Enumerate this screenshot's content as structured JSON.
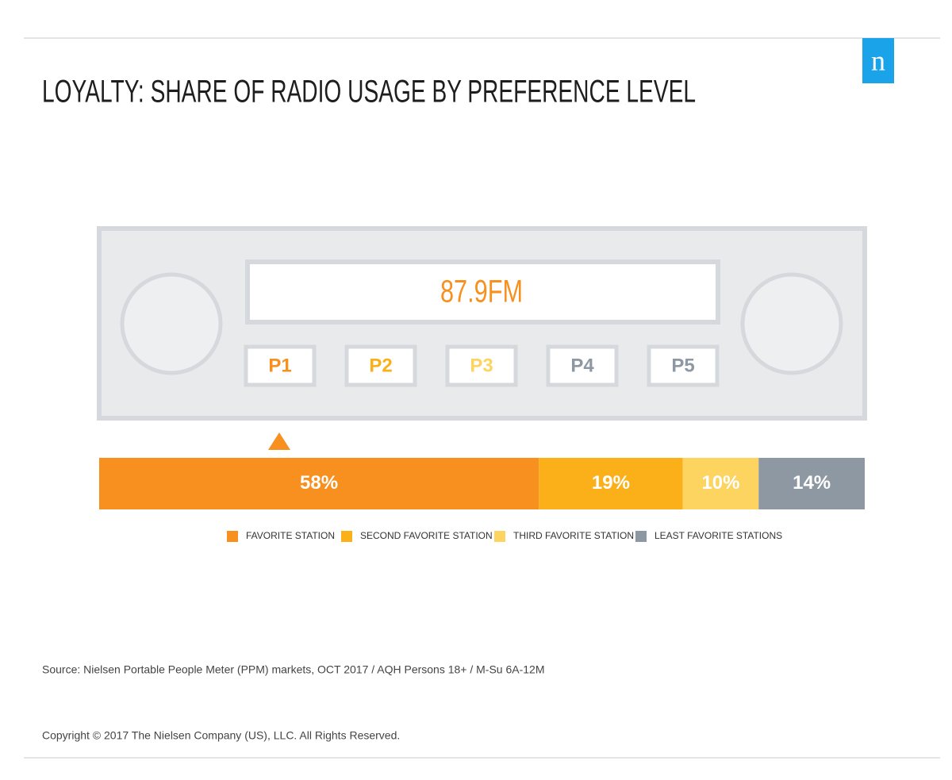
{
  "chart_data": {
    "type": "stacked-bar",
    "title": "LOYALTY: SHARE OF RADIO USAGE BY PREFERENCE LEVEL",
    "logo": "n",
    "display": "87.9FM",
    "presets": [
      "P1",
      "P2",
      "P3",
      "P4",
      "P5"
    ],
    "series": [
      {
        "name": "FAVORITE STATION",
        "color": "#f7901e",
        "values": [
          58
        ],
        "value_labels": [
          "58%"
        ]
      },
      {
        "name": "SECOND FAVORITE STATION",
        "color": "#fbb01a",
        "values": [
          19
        ],
        "value_labels": [
          "19%"
        ]
      },
      {
        "name": "THIRD FAVORITE STATION",
        "color": "#fdd460",
        "values": [
          10
        ],
        "value_labels": [
          "10%"
        ]
      },
      {
        "name": "LEAST FAVORITE STATIONS",
        "color": "#8d98a3",
        "values": [
          14
        ],
        "value_labels": [
          "14%"
        ]
      }
    ],
    "source": "Source: Nielsen Portable People Meter (PPM) markets, OCT 2017 / AQH Persons 18+ / M-Su 6A-12M",
    "copyright": "Copyright © 2017 The Nielsen Company (US), LLC. All Rights Reserved."
  }
}
